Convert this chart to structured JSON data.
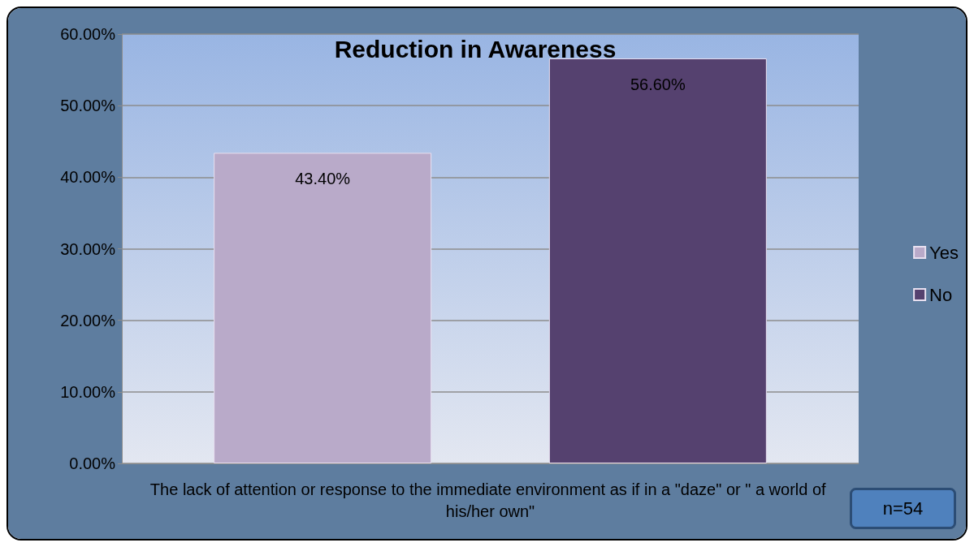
{
  "chart_data": {
    "type": "bar",
    "title": "Reduction in Awareness",
    "categories": [
      "The lack of attention or response to the immediate environment as if in a \"daze\" or \" a world of his/her own\""
    ],
    "series": [
      {
        "name": "Yes",
        "color": "#b9aac9",
        "values": [
          43.4
        ],
        "value_labels": [
          "43.40%"
        ]
      },
      {
        "name": "No",
        "color": "#55416f",
        "values": [
          56.6
        ],
        "value_labels": [
          "56.60%"
        ]
      }
    ],
    "ylim": [
      0,
      60
    ],
    "yticks": [
      {
        "value": 0,
        "label": "0.00%"
      },
      {
        "value": 10,
        "label": "10.00%"
      },
      {
        "value": 20,
        "label": "20.00%"
      },
      {
        "value": 30,
        "label": "30.00%"
      },
      {
        "value": 40,
        "label": "40.00%"
      },
      {
        "value": 50,
        "label": "50.00%"
      },
      {
        "value": 60,
        "label": "60.00%"
      }
    ],
    "grid": "y",
    "legend": "right",
    "annotations": [
      "n=54"
    ]
  }
}
